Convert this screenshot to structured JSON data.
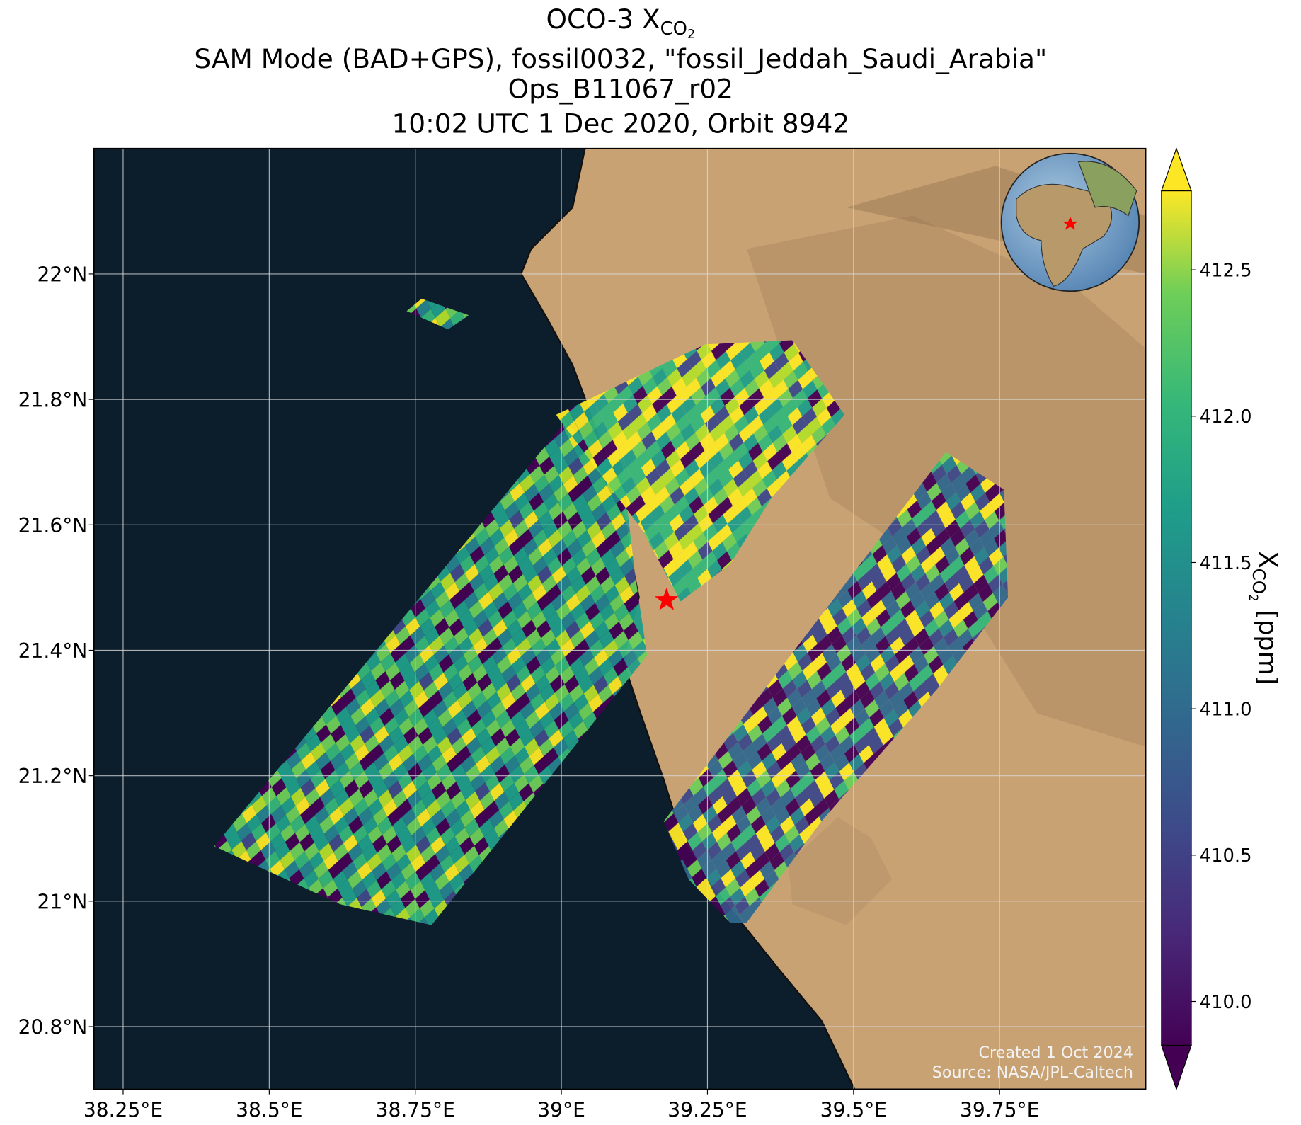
{
  "title": {
    "line1": "OCO-3 X",
    "line1_sub": "CO",
    "line1_subsub": "2",
    "line2": "SAM Mode (BAD+GPS), fossil0032, \"fossil_Jeddah_Saudi_Arabia\"",
    "line3": "Ops_B11067_r02",
    "line4": "10:02 UTC 1 Dec 2020, Orbit 8942"
  },
  "map": {
    "xlim": [
      38.2,
      40.0
    ],
    "ylim": [
      20.7,
      22.2
    ],
    "grid": true,
    "xticks": [
      {
        "value": 38.25,
        "label": "38.25°E"
      },
      {
        "value": 38.5,
        "label": "38.5°E"
      },
      {
        "value": 38.75,
        "label": "38.75°E"
      },
      {
        "value": 39,
        "label": "39°E"
      },
      {
        "value": 39.25,
        "label": "39.25°E"
      },
      {
        "value": 39.5,
        "label": "39.5°E"
      },
      {
        "value": 39.75,
        "label": "39.75°E"
      }
    ],
    "yticks": [
      {
        "value": 20.8,
        "label": "20.8°N"
      },
      {
        "value": 21,
        "label": "21°N"
      },
      {
        "value": 21.2,
        "label": "21.2°N"
      },
      {
        "value": 21.4,
        "label": "21.4°N"
      },
      {
        "value": 21.6,
        "label": "21.6°N"
      },
      {
        "value": 21.8,
        "label": "21.8°N"
      },
      {
        "value": 22,
        "label": "22°N"
      }
    ],
    "site": {
      "lon": 39.18,
      "lat": 21.48,
      "color": "#ff0000"
    }
  },
  "colorbar": {
    "label": "X",
    "label_sub": "CO",
    "label_subsub": "2",
    "label_unit": "[ppm]",
    "clim": [
      409.85,
      412.77
    ],
    "ticks": [
      {
        "value": 410.0,
        "label": "410.0"
      },
      410.5,
      {
        "value": 411.0,
        "label": "411.0"
      },
      411.5,
      {
        "value": 412.0,
        "label": "412.0"
      },
      412.5
    ]
  },
  "credits": {
    "created": "Created 1 Oct 2024",
    "source": "Source: NASA/JPL-Caltech"
  }
}
